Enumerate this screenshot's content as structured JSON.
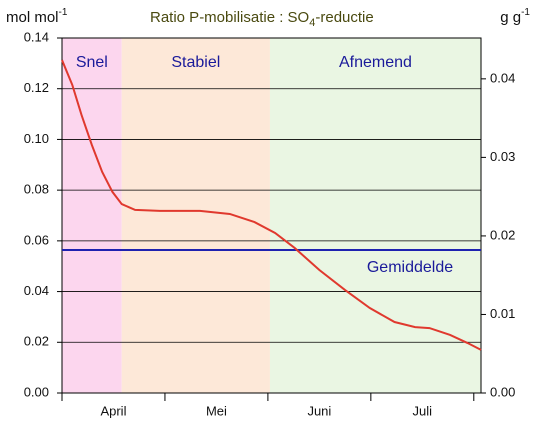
{
  "chart_data": {
    "type": "line",
    "title": [
      "Ratio P-mobilisatie : SO",
      "4",
      "-reductie"
    ],
    "ylabel": [
      "mol mol",
      "-1"
    ],
    "y2label": [
      "g g",
      "-1"
    ],
    "categories": [
      "April",
      "Mei",
      "Juni",
      "Juli"
    ],
    "xlim": [
      0,
      4.07
    ],
    "xticks": [
      0,
      1,
      2,
      3,
      4
    ],
    "ylim": [
      0,
      0.14
    ],
    "yticks": [
      {
        "value": 0,
        "label": "0.00"
      },
      0.02,
      0.04,
      0.06,
      0.08,
      {
        "value": 0.1,
        "label": "0.10"
      },
      0.12,
      0.14
    ],
    "y2lim": [
      0,
      0.0452
    ],
    "y2ticks": [
      {
        "value": 0,
        "label": "0.00"
      },
      0.01,
      0.02,
      0.03,
      0.04
    ],
    "grid": true,
    "regions": [
      {
        "label": "Snel",
        "start": 0,
        "end": 0.58,
        "color": "#fcd6ee"
      },
      {
        "label": "Stabiel",
        "start": 0.58,
        "end": 2.02,
        "color": "#fde8d8"
      },
      {
        "label": "Afnemend",
        "start": 2.02,
        "end": 4.07,
        "color": "#eaf6e3"
      }
    ],
    "series": [
      {
        "color": "#e0392e",
        "x": [
          0,
          0.1,
          0.19,
          0.29,
          0.39,
          0.49,
          0.58,
          0.71,
          0.95,
          1.34,
          1.63,
          1.87,
          2.07,
          2.26,
          2.5,
          2.75,
          2.99,
          3.23,
          3.43,
          3.57,
          3.77,
          3.94,
          4.07
        ],
        "values": [
          0.1313,
          0.1215,
          0.1096,
          0.0978,
          0.0872,
          0.0793,
          0.0745,
          0.0722,
          0.0718,
          0.0718,
          0.0706,
          0.0674,
          0.0631,
          0.0572,
          0.0485,
          0.0406,
          0.0335,
          0.028,
          0.026,
          0.0256,
          0.0229,
          0.0197,
          0.017
        ]
      }
    ],
    "mean": {
      "label": "Gemiddelde",
      "value": 0.0564,
      "color": "#1e22b0"
    }
  }
}
